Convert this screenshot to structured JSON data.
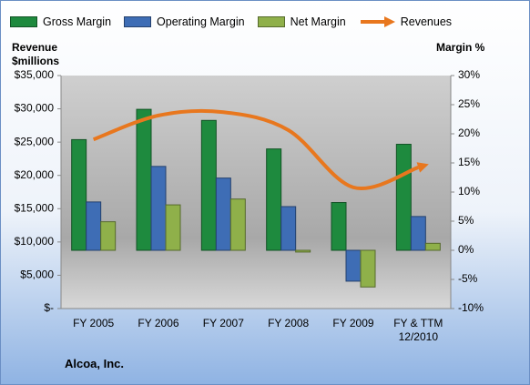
{
  "chart_data": {
    "type": "bar",
    "title": "Alcoa, Inc.",
    "y_label": "Revenue $millions",
    "y2_label": "Margin %",
    "categories": [
      "FY 2005",
      "FY 2006",
      "FY 2007",
      "FY 2008",
      "FY 2009",
      "FY & TTM 12/2010"
    ],
    "series": [
      {
        "name": "Gross Margin",
        "type": "bar",
        "axis": "y2",
        "color": "#1e8a3e",
        "values": [
          19.0,
          24.2,
          22.3,
          17.4,
          8.2,
          18.2
        ]
      },
      {
        "name": "Operating Margin",
        "type": "bar",
        "axis": "y2",
        "color": "#3e6db5",
        "values": [
          8.3,
          14.4,
          12.4,
          7.5,
          -5.3,
          5.8
        ]
      },
      {
        "name": "Net Margin",
        "type": "bar",
        "axis": "y2",
        "color": "#8fb04a",
        "values": [
          4.9,
          7.8,
          8.8,
          -0.3,
          -6.3,
          1.2
        ]
      },
      {
        "name": "Revenues",
        "type": "line",
        "axis": "y",
        "color": "#e8771e",
        "values": [
          25400,
          29000,
          29500,
          26800,
          18200,
          21200
        ]
      }
    ],
    "ylim": [
      0,
      35000
    ],
    "yticks": [
      {
        "value": 0,
        "label": "$-"
      },
      {
        "value": 5000,
        "label": "$5,000"
      },
      {
        "value": 10000,
        "label": "$10,000"
      },
      {
        "value": 15000,
        "label": "$15,000"
      },
      {
        "value": 20000,
        "label": "$20,000"
      },
      {
        "value": 25000,
        "label": "$25,000"
      },
      {
        "value": 30000,
        "label": "$30,000"
      },
      {
        "value": 35000,
        "label": "$35,000"
      }
    ],
    "y2lim": [
      -10,
      30
    ],
    "y2ticks": [
      {
        "value": -10,
        "label": "-10%"
      },
      {
        "value": -5,
        "label": "-5%"
      },
      {
        "value": 0,
        "label": "0%"
      },
      {
        "value": 5,
        "label": "5%"
      },
      {
        "value": 10,
        "label": "10%"
      },
      {
        "value": 15,
        "label": "15%"
      },
      {
        "value": 20,
        "label": "20%"
      },
      {
        "value": 25,
        "label": "25%"
      },
      {
        "value": 30,
        "label": "30%"
      }
    ]
  }
}
